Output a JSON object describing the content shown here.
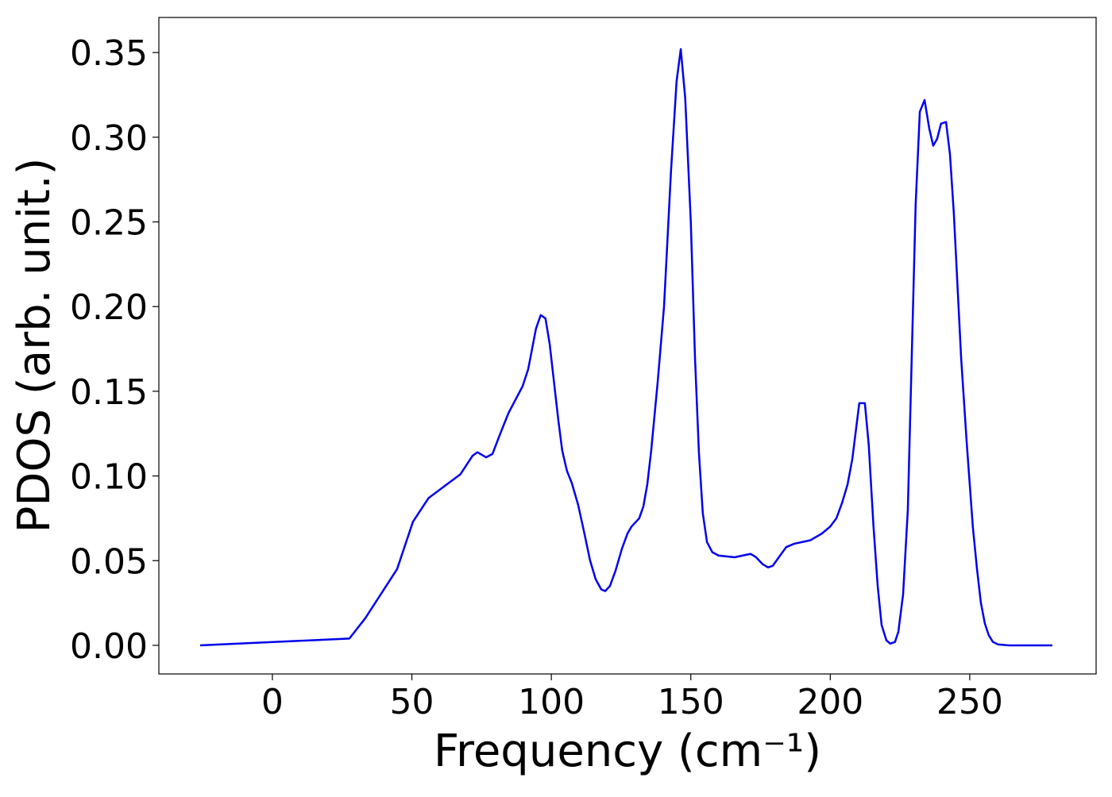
{
  "chart_data": {
    "type": "line",
    "xlabel": "Frequency (cm⁻¹)",
    "ylabel": "PDOS (arb. unit.)",
    "xlim": [
      -40.7,
      295.3
    ],
    "ylim": [
      -0.0169,
      0.3707
    ],
    "xticks": [
      0,
      50,
      100,
      150,
      200,
      250
    ],
    "yticks": [
      {
        "value": 0,
        "label": "0.00"
      },
      {
        "value": 0.05,
        "label": "0.05"
      },
      {
        "value": 0.1,
        "label": "0.10"
      },
      {
        "value": 0.15,
        "label": "0.15"
      },
      {
        "value": 0.2,
        "label": "0.20"
      },
      {
        "value": 0.25,
        "label": "0.25"
      },
      {
        "value": 0.3,
        "label": "0.30"
      },
      {
        "value": 0.35,
        "label": "0.35"
      }
    ],
    "grid": false,
    "series": [
      {
        "color": "#0000ee",
        "x": [
          -25.9,
          27.6,
          33.3,
          44.7,
          50.4,
          56,
          61.7,
          67.4,
          71.8,
          73.5,
          76.6,
          78.9,
          81.7,
          84.6,
          89.7,
          91.7,
          94.5,
          96.2,
          97.9,
          99.4,
          102.5,
          103.9,
          105.6,
          107.3,
          109.6,
          111.6,
          113.9,
          115.9,
          117.9,
          119.3,
          121,
          123,
          125.3,
          127.3,
          128.7,
          131.5,
          133,
          134.4,
          135.8,
          138.1,
          140.4,
          142.9,
          144.9,
          146.4,
          148,
          150,
          151.5,
          152.9,
          154.3,
          155.8,
          157.7,
          160,
          165.7,
          171.4,
          173.4,
          175.7,
          177.7,
          179.4,
          182,
          184.2,
          187.1,
          192.8,
          197,
          199.9,
          202.2,
          204.2,
          206.2,
          207.9,
          210.4,
          212.4,
          213.8,
          215.5,
          217,
          218.4,
          220.1,
          221.5,
          223.2,
          224.4,
          226.1,
          227.8,
          229.2,
          230.6,
          232.1,
          233.8,
          235.5,
          236.9,
          238.3,
          239.7,
          241.5,
          242.9,
          244.3,
          246.9,
          248.9,
          251.1,
          252.6,
          254,
          255.4,
          256.8,
          258.3,
          260.2,
          264,
          279.6
        ],
        "values": [
          0,
          0.004,
          0.016,
          0.045,
          0.073,
          0.087,
          0.094,
          0.101,
          0.112,
          0.114,
          0.111,
          0.113,
          0.125,
          0.137,
          0.153,
          0.163,
          0.187,
          0.195,
          0.193,
          0.178,
          0.133,
          0.115,
          0.103,
          0.096,
          0.083,
          0.068,
          0.05,
          0.039,
          0.033,
          0.032,
          0.035,
          0.044,
          0.057,
          0.066,
          0.07,
          0.075,
          0.082,
          0.095,
          0.115,
          0.155,
          0.2,
          0.28,
          0.333,
          0.352,
          0.323,
          0.25,
          0.17,
          0.114,
          0.078,
          0.061,
          0.055,
          0.053,
          0.052,
          0.054,
          0.052,
          0.048,
          0.046,
          0.047,
          0.053,
          0.058,
          0.06,
          0.062,
          0.066,
          0.07,
          0.075,
          0.084,
          0.095,
          0.11,
          0.143,
          0.143,
          0.118,
          0.07,
          0.035,
          0.012,
          0.003,
          0.001,
          0.002,
          0.008,
          0.03,
          0.08,
          0.17,
          0.26,
          0.315,
          0.322,
          0.305,
          0.295,
          0.299,
          0.308,
          0.309,
          0.29,
          0.255,
          0.17,
          0.12,
          0.07,
          0.045,
          0.025,
          0.013,
          0.006,
          0.002,
          0.0005,
          0,
          0
        ]
      }
    ]
  }
}
